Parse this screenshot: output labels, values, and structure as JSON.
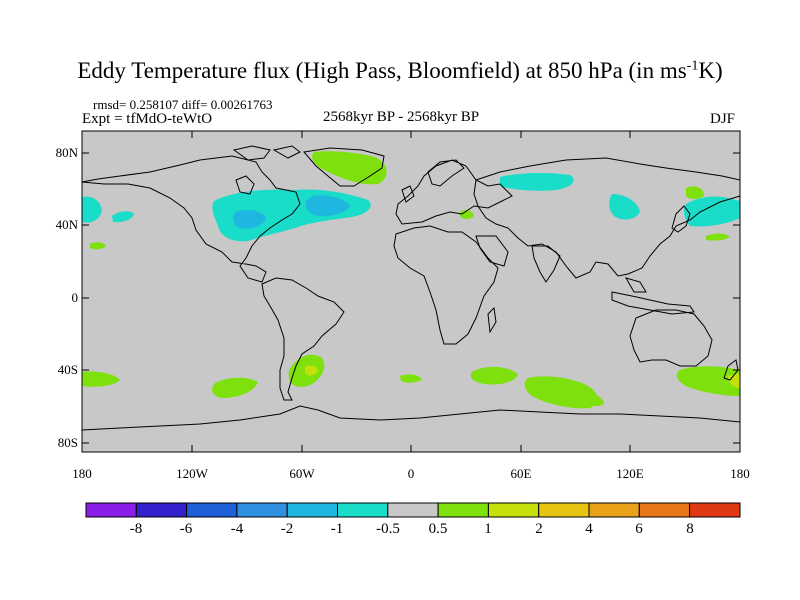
{
  "title_main": "Eddy Temperature flux (High Pass, Bloomfield) at 850 hPa (in ms",
  "title_sup": "-1",
  "title_end": "K)",
  "stats": "rmsd= 0.258107 diff= 0.00261763",
  "expt": "Expt = tfMdO-teWtO",
  "period": "2568kyr BP - 2568kyr BP",
  "season": "DJF",
  "axes": {
    "lat_labels": [
      "80N",
      "40N",
      "0",
      "40S",
      "80S"
    ],
    "lon_labels": [
      "180",
      "120W",
      "60W",
      "0",
      "60E",
      "120E",
      "180"
    ]
  },
  "colorbar": {
    "labels": [
      "-8",
      "-6",
      "-4",
      "-2",
      "-1",
      "-0.5",
      "0.5",
      "1",
      "2",
      "4",
      "6",
      "8"
    ],
    "colors": [
      "#8a1ee6",
      "#3322cc",
      "#1f5fd8",
      "#2f8fe0",
      "#1fb6e0",
      "#19dcc9",
      "#c8c8c8",
      "#7ee00c",
      "#c6e00c",
      "#e6c412",
      "#e8a21a",
      "#e6781a",
      "#e03a14"
    ]
  },
  "colors": {
    "land_bg": "#c8c8c8",
    "coast": "#000000"
  }
}
